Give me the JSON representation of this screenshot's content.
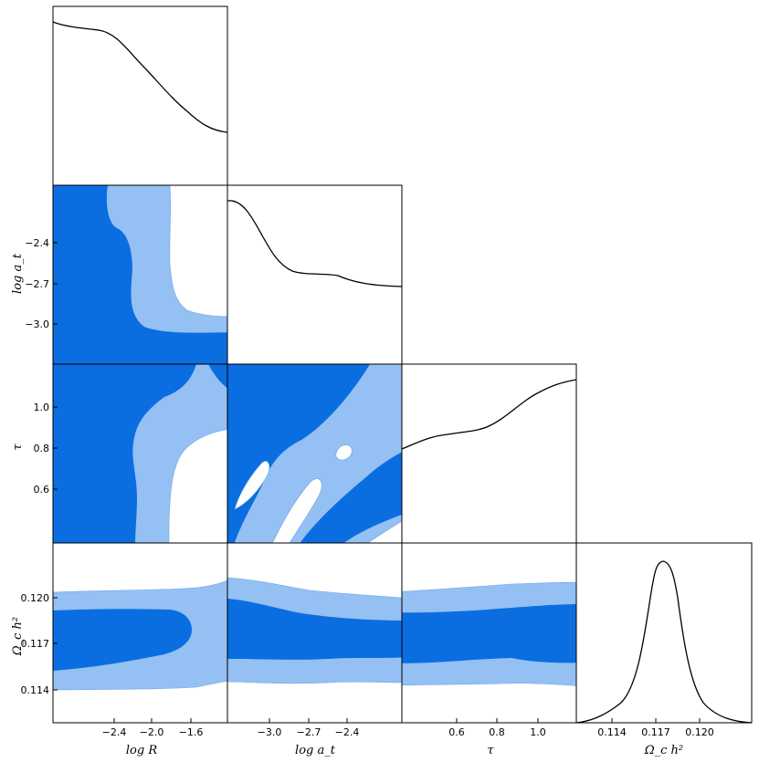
{
  "chart_data": {
    "type": "triangle",
    "colors": {
      "dark": "#0a6ee0",
      "light": "#95c0f3",
      "line": "#000000"
    },
    "parameters": [
      {
        "name": "log R",
        "ticks": [
          -2.4,
          -2.0,
          -1.6
        ],
        "tick_labels": [
          "−2.4",
          "−2.0",
          "−1.6"
        ]
      },
      {
        "name": "log a_t",
        "ticks": [
          -3.0,
          -2.7,
          -2.4
        ],
        "tick_labels": [
          "−3.0",
          "−2.7",
          "−2.4"
        ]
      },
      {
        "name": "τ",
        "ticks": [
          0.6,
          0.8,
          1.0
        ],
        "tick_labels": [
          "0.6",
          "0.8",
          "1.0"
        ]
      },
      {
        "name": "Ω_c h²",
        "ticks": [
          0.114,
          0.117,
          0.12
        ],
        "tick_labels": [
          "0.114",
          "0.117",
          "0.120"
        ]
      }
    ],
    "axis_labels": {
      "x": [
        "log R",
        "log a_t",
        "τ",
        "Ω_c h²"
      ],
      "y": [
        "log a_t",
        "τ",
        "Ω_c h²"
      ]
    },
    "diagonal_1d": [
      {
        "parameter": "log R",
        "x": [
          -2.85,
          -2.7,
          -2.5,
          -2.35,
          -2.2,
          -2.0,
          -1.85,
          -1.7,
          -1.55,
          -1.4
        ],
        "y": [
          0.91,
          0.88,
          0.86,
          0.8,
          0.68,
          0.5,
          0.34,
          0.2,
          0.15,
          0.14
        ]
      },
      {
        "parameter": "log a_t",
        "x": [
          -3.3,
          -3.2,
          -3.1,
          -3.0,
          -2.9,
          -2.7,
          -2.5,
          -2.3,
          -2.1,
          -1.95
        ],
        "y": [
          0.91,
          0.86,
          0.7,
          0.55,
          0.5,
          0.48,
          0.48,
          0.45,
          0.44,
          0.43
        ]
      },
      {
        "parameter": "τ",
        "x": [
          0.38,
          0.5,
          0.62,
          0.75,
          0.85,
          0.95,
          1.05,
          1.15,
          1.2
        ],
        "y": [
          0.53,
          0.58,
          0.61,
          0.64,
          0.7,
          0.79,
          0.86,
          0.91,
          0.92
        ]
      },
      {
        "parameter": "Ω_c h²",
        "x": [
          0.1115,
          0.114,
          0.1155,
          0.1165,
          0.1175,
          0.1185,
          0.1195,
          0.121,
          0.123
        ],
        "y": [
          0.0,
          0.04,
          0.5,
          0.88,
          0.97,
          0.88,
          0.45,
          0.05,
          0.0
        ]
      }
    ],
    "contour_levels": [
      "68%",
      "95%"
    ],
    "grid": false,
    "legend": "none"
  }
}
